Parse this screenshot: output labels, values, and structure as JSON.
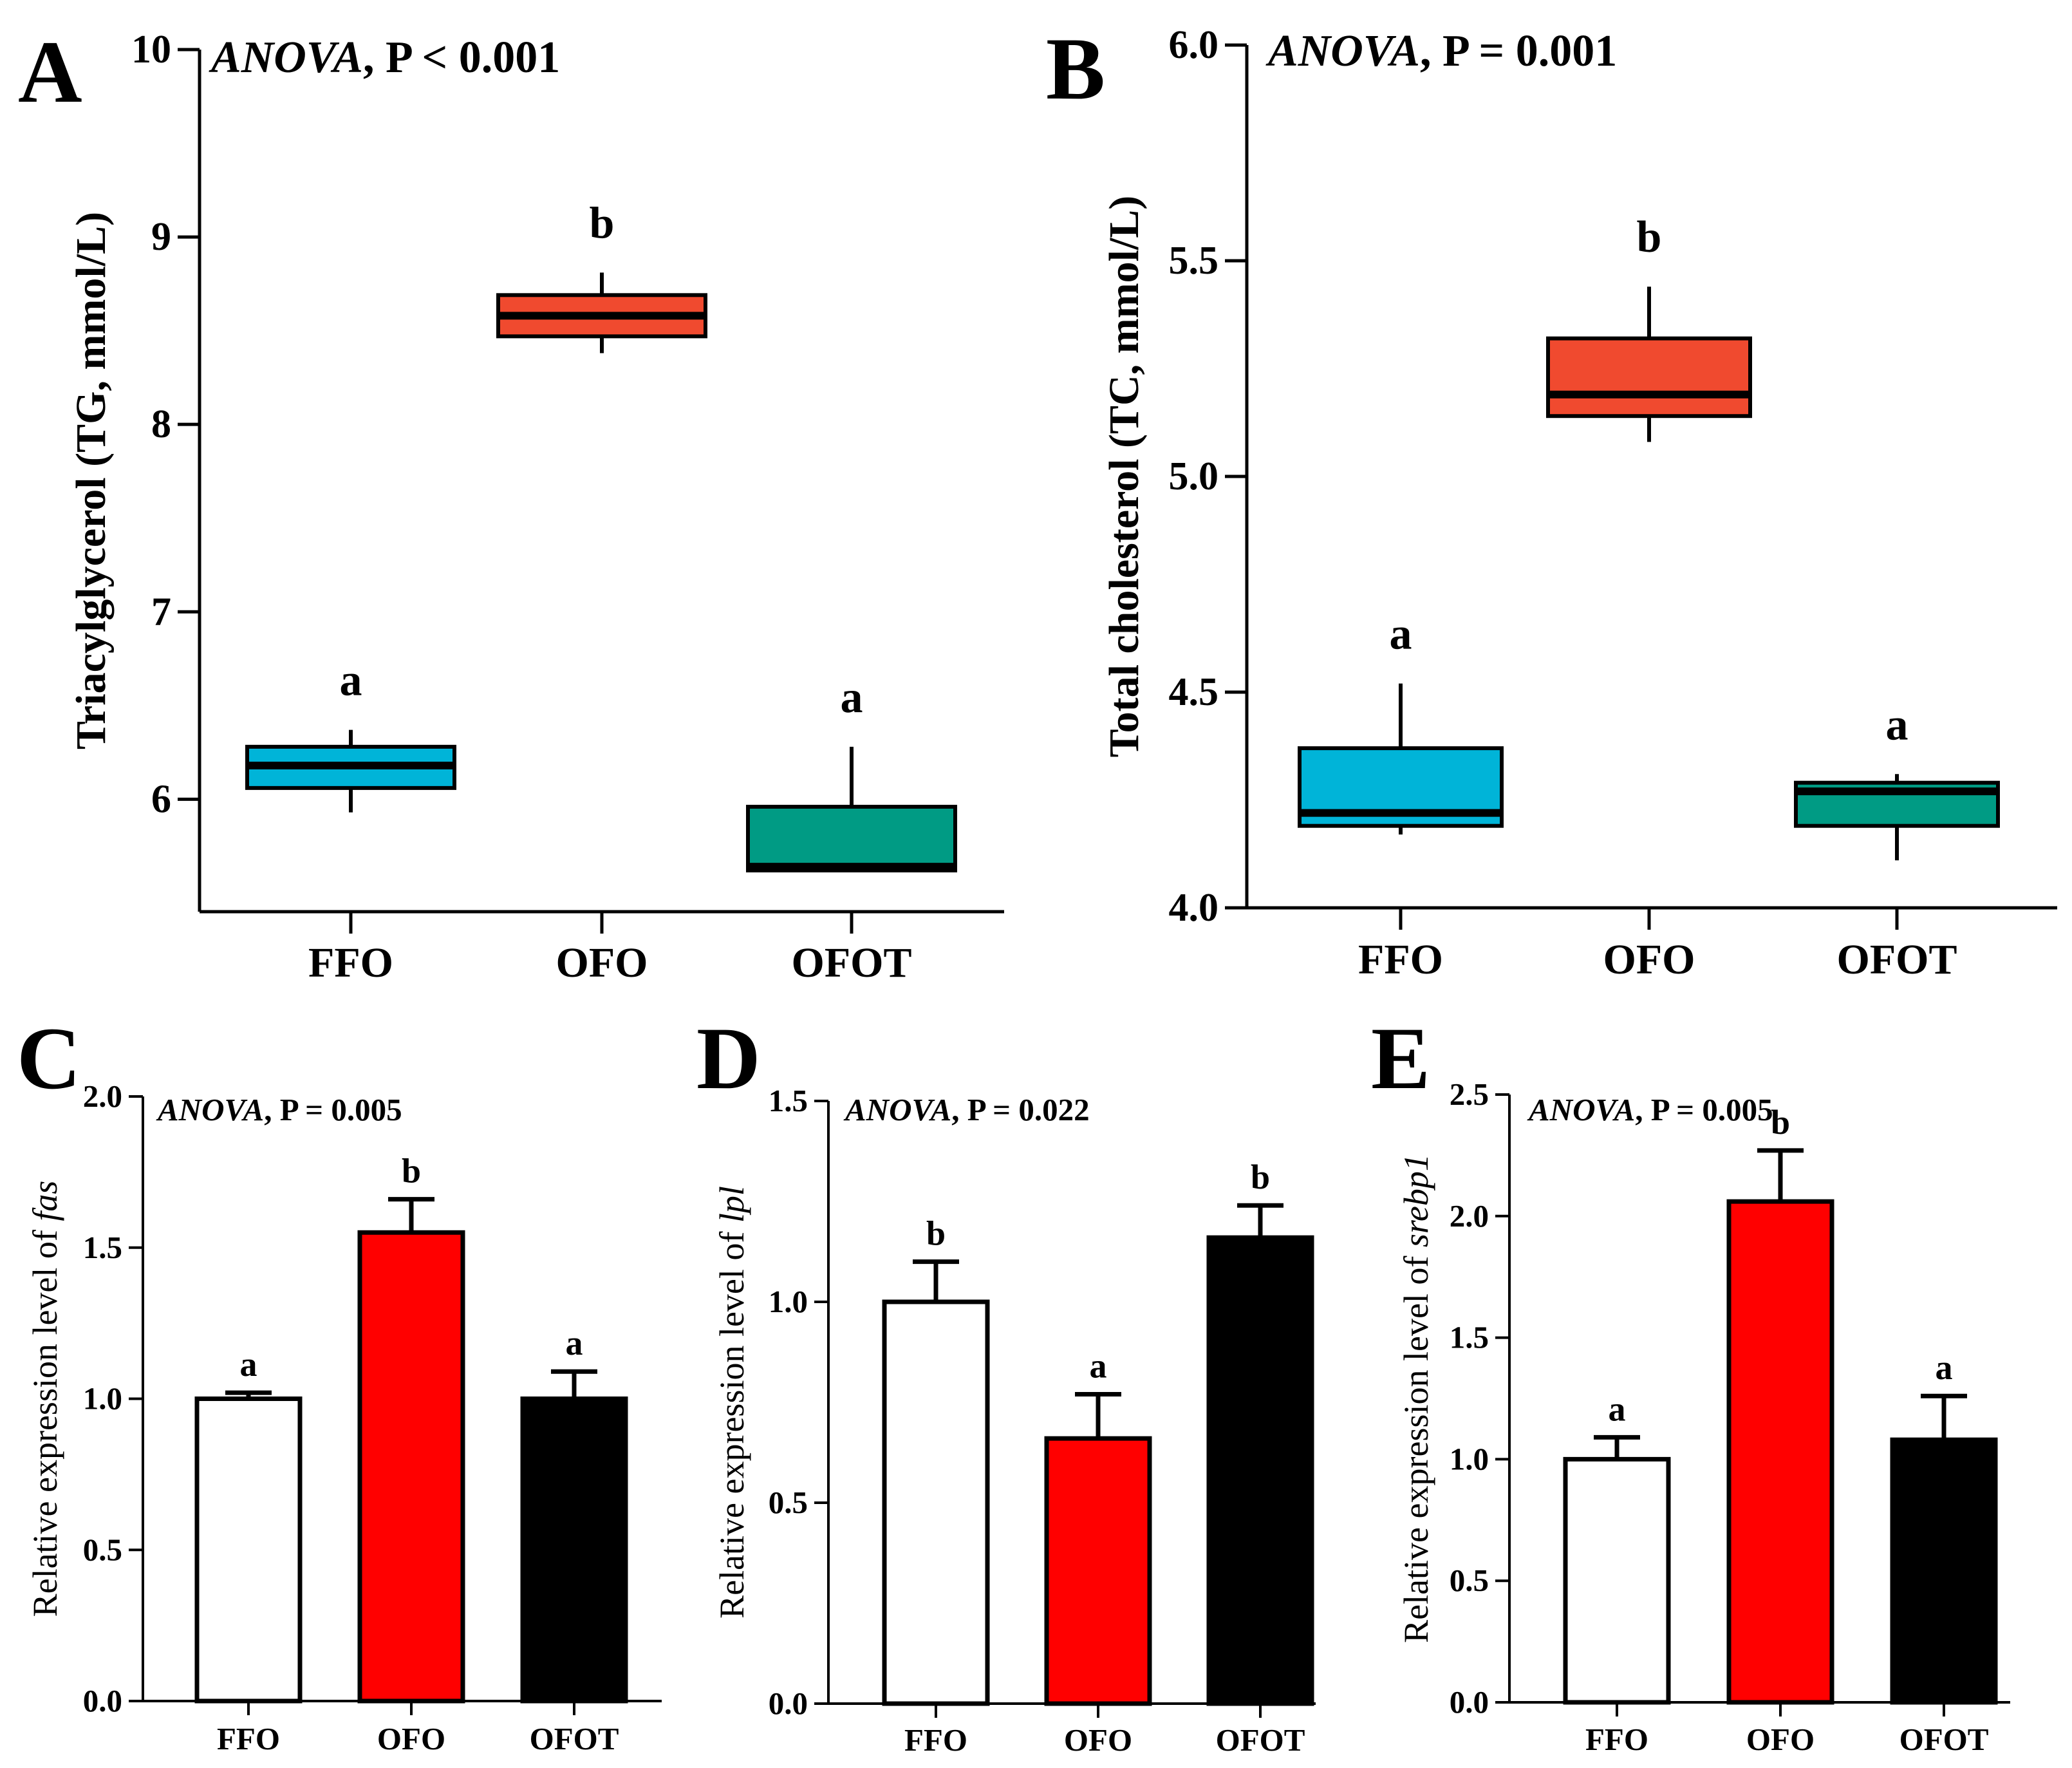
{
  "figure": {
    "panels": [
      {
        "letter": "A",
        "anova": {
          "prefix": "ANOVA",
          "text": ", P < 0.001"
        }
      },
      {
        "letter": "B",
        "anova": {
          "prefix": "ANOVA",
          "text": ", P = 0.001"
        }
      },
      {
        "letter": "C",
        "anova": {
          "prefix": "ANOVA",
          "text": ", P = 0.005"
        }
      },
      {
        "letter": "D",
        "anova": {
          "prefix": "ANOVA",
          "text": ", P = 0.022"
        }
      },
      {
        "letter": "E",
        "anova": {
          "prefix": "ANOVA",
          "text": ", P = 0.005"
        }
      }
    ]
  },
  "colors": {
    "FFO_box": "#00b4d8",
    "OFO_box": "#f04a2f",
    "OFOT_box": "#009b84",
    "FFO_bar": "#ffffff",
    "OFO_bar": "#ff0000",
    "OFOT_bar": "#000000"
  },
  "chart_data": [
    {
      "id": "A",
      "type": "box",
      "ylabel": "Triacylglycerol (TG, mmol/L)",
      "ylim": [
        5.4,
        10
      ],
      "yticks": [
        "6",
        "7",
        "8",
        "9",
        "10"
      ],
      "categories": [
        "FFO",
        "OFO",
        "OFOT"
      ],
      "boxes": [
        {
          "name": "FFO",
          "min": 5.93,
          "q1": 6.06,
          "median": 6.18,
          "q3": 6.28,
          "max": 6.37,
          "label": "a"
        },
        {
          "name": "OFO",
          "min": 8.38,
          "q1": 8.47,
          "median": 8.58,
          "q3": 8.69,
          "max": 8.81,
          "label": "b"
        },
        {
          "name": "OFOT",
          "min": 5.62,
          "q1": 5.62,
          "median": 5.64,
          "q3": 5.96,
          "max": 6.28,
          "label": "a"
        }
      ]
    },
    {
      "id": "B",
      "type": "box",
      "ylabel": "Total cholesterol (TC, mmol/L)",
      "ylim": [
        4.0,
        6.0
      ],
      "yticks": [
        "4.0",
        "4.5",
        "5.0",
        "5.5",
        "6.0"
      ],
      "categories": [
        "FFO",
        "OFO",
        "OFOT"
      ],
      "boxes": [
        {
          "name": "FFO",
          "min": 4.17,
          "q1": 4.19,
          "median": 4.22,
          "q3": 4.37,
          "max": 4.52,
          "label": "a"
        },
        {
          "name": "OFO",
          "min": 5.08,
          "q1": 5.14,
          "median": 5.19,
          "q3": 5.32,
          "max": 5.44,
          "label": "b"
        },
        {
          "name": "OFOT",
          "min": 4.11,
          "q1": 4.19,
          "median": 4.27,
          "q3": 4.29,
          "max": 4.31,
          "label": "a"
        }
      ]
    },
    {
      "id": "C",
      "type": "bar",
      "ylabel_prefix": "Relative expression level of ",
      "ylabel_gene": "fas",
      "ylim": [
        0,
        2.0
      ],
      "yticks": [
        "0.0",
        "0.5",
        "1.0",
        "1.5",
        "2.0"
      ],
      "categories": [
        "FFO",
        "OFO",
        "OFOT"
      ],
      "values": [
        1.0,
        1.55,
        1.0
      ],
      "errors": [
        0.02,
        0.11,
        0.09
      ],
      "labels": [
        "a",
        "b",
        "a"
      ]
    },
    {
      "id": "D",
      "type": "bar",
      "ylabel_prefix": "Relative expression level of ",
      "ylabel_gene": "lpl",
      "ylim": [
        0,
        1.5
      ],
      "yticks": [
        "0.0",
        "0.5",
        "1.0",
        "1.5"
      ],
      "categories": [
        "FFO",
        "OFO",
        "OFOT"
      ],
      "values": [
        1.0,
        0.66,
        1.16
      ],
      "errors": [
        0.1,
        0.11,
        0.08
      ],
      "labels": [
        "b",
        "a",
        "b"
      ]
    },
    {
      "id": "E",
      "type": "bar",
      "ylabel_prefix": "Relative expression level of ",
      "ylabel_gene": "srebp1",
      "ylim": [
        0,
        2.5
      ],
      "yticks": [
        "0.0",
        "0.5",
        "1.0",
        "1.5",
        "2.0",
        "2.5"
      ],
      "categories": [
        "FFO",
        "OFO",
        "OFOT"
      ],
      "values": [
        1.0,
        2.06,
        1.08
      ],
      "errors": [
        0.09,
        0.21,
        0.18
      ],
      "labels": [
        "a",
        "b",
        "a"
      ]
    }
  ]
}
